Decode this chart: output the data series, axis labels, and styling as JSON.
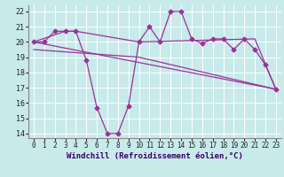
{
  "xlabel": "Windchill (Refroidissement éolien,°C)",
  "background_color": "#c8eaea",
  "grid_color": "#ffffff",
  "line_color": "#993399",
  "xlim": [
    -0.5,
    23.5
  ],
  "ylim": [
    13.7,
    22.4
  ],
  "yticks": [
    14,
    15,
    16,
    17,
    18,
    19,
    20,
    21,
    22
  ],
  "xticks": [
    0,
    1,
    2,
    3,
    4,
    5,
    6,
    7,
    8,
    9,
    10,
    11,
    12,
    13,
    14,
    15,
    16,
    17,
    18,
    19,
    20,
    21,
    22,
    23
  ],
  "series1_x": [
    0,
    1,
    2,
    3,
    4,
    5,
    6,
    7,
    8,
    9,
    10,
    11,
    12,
    13,
    14,
    15,
    16,
    17,
    18,
    19,
    20,
    21,
    22,
    23
  ],
  "series1_y": [
    20.0,
    20.0,
    20.7,
    20.7,
    20.7,
    18.8,
    15.7,
    14.0,
    14.0,
    15.8,
    20.0,
    21.0,
    20.0,
    22.0,
    22.0,
    20.2,
    19.9,
    20.2,
    20.2,
    19.5,
    20.2,
    19.5,
    18.5,
    16.9
  ],
  "series2_x": [
    0,
    3,
    4,
    10,
    21,
    23
  ],
  "series2_y": [
    20.0,
    20.7,
    20.7,
    20.0,
    20.2,
    16.9
  ],
  "series3_x": [
    0,
    23
  ],
  "series3_y": [
    20.0,
    16.9
  ],
  "series4_x": [
    0,
    10,
    23
  ],
  "series4_y": [
    19.5,
    19.0,
    16.9
  ],
  "marker": "D",
  "marker_size": 2.5,
  "linewidth": 0.9,
  "tick_fontsize": 5.5,
  "label_fontsize": 6.5
}
